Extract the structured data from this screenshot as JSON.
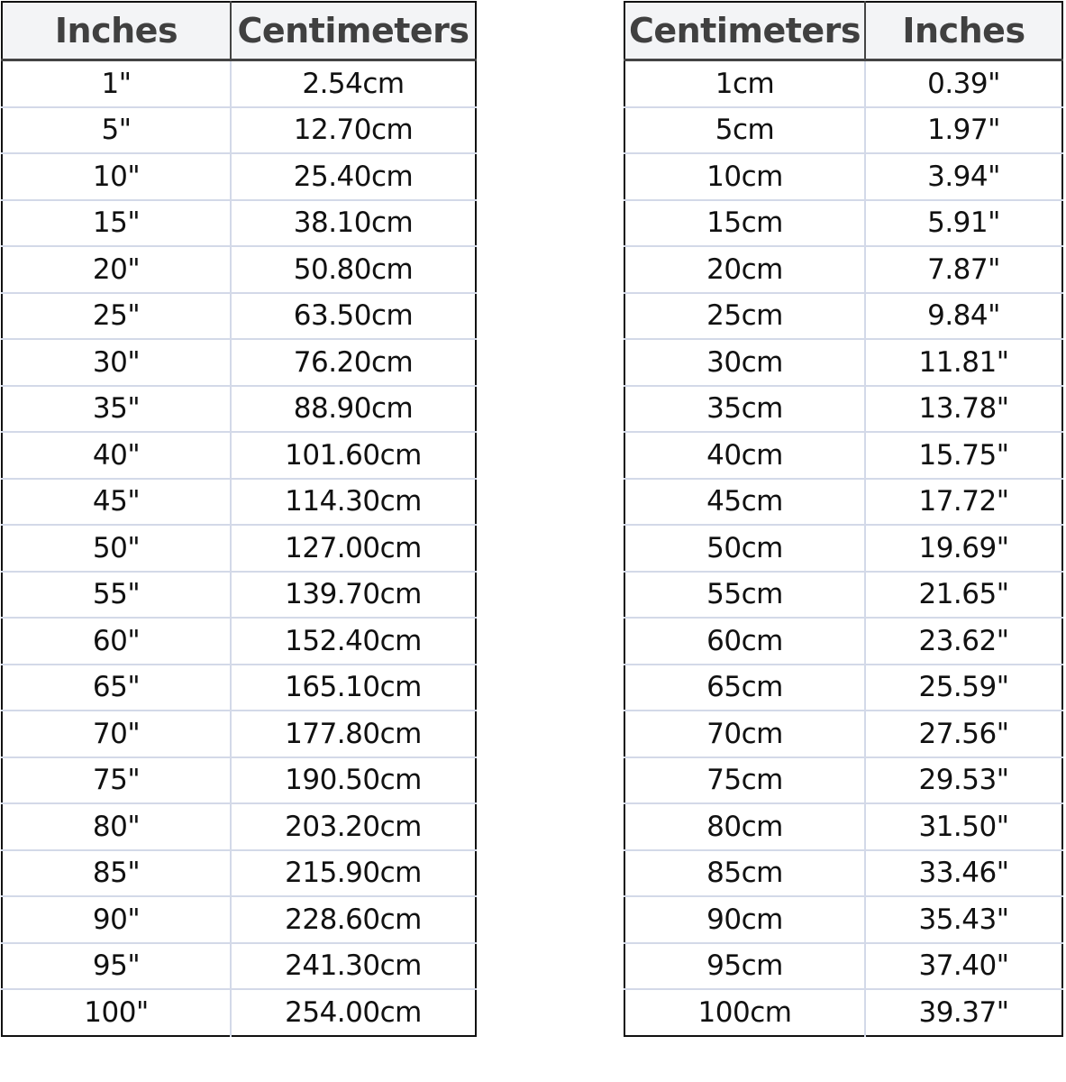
{
  "tables": [
    {
      "headers": [
        "Inches",
        "Centimeters"
      ],
      "rows": [
        [
          "1\"",
          "2.54cm"
        ],
        [
          "5\"",
          "12.70cm"
        ],
        [
          "10\"",
          "25.40cm"
        ],
        [
          "15\"",
          "38.10cm"
        ],
        [
          "20\"",
          "50.80cm"
        ],
        [
          "25\"",
          "63.50cm"
        ],
        [
          "30\"",
          "76.20cm"
        ],
        [
          "35\"",
          "88.90cm"
        ],
        [
          "40\"",
          "101.60cm"
        ],
        [
          "45\"",
          "114.30cm"
        ],
        [
          "50\"",
          "127.00cm"
        ],
        [
          "55\"",
          "139.70cm"
        ],
        [
          "60\"",
          "152.40cm"
        ],
        [
          "65\"",
          "165.10cm"
        ],
        [
          "70\"",
          "177.80cm"
        ],
        [
          "75\"",
          "190.50cm"
        ],
        [
          "80\"",
          "203.20cm"
        ],
        [
          "85\"",
          "215.90cm"
        ],
        [
          "90\"",
          "228.60cm"
        ],
        [
          "95\"",
          "241.30cm"
        ],
        [
          "100\"",
          "254.00cm"
        ]
      ]
    },
    {
      "headers": [
        "Centimeters",
        "Inches"
      ],
      "rows": [
        [
          "1cm",
          "0.39\""
        ],
        [
          "5cm",
          "1.97\""
        ],
        [
          "10cm",
          "3.94\""
        ],
        [
          "15cm",
          "5.91\""
        ],
        [
          "20cm",
          "7.87\""
        ],
        [
          "25cm",
          "9.84\""
        ],
        [
          "30cm",
          "11.81\""
        ],
        [
          "35cm",
          "13.78\""
        ],
        [
          "40cm",
          "15.75\""
        ],
        [
          "45cm",
          "17.72\""
        ],
        [
          "50cm",
          "19.69\""
        ],
        [
          "55cm",
          "21.65\""
        ],
        [
          "60cm",
          "23.62\""
        ],
        [
          "65cm",
          "25.59\""
        ],
        [
          "70cm",
          "27.56\""
        ],
        [
          "75cm",
          "29.53\""
        ],
        [
          "80cm",
          "31.50\""
        ],
        [
          "85cm",
          "33.46\""
        ],
        [
          "90cm",
          "35.43\""
        ],
        [
          "95cm",
          "37.40\""
        ],
        [
          "100cm",
          "39.37\""
        ]
      ]
    }
  ],
  "colors": {
    "header_bg": "#f3f4f6",
    "header_text": "#404040",
    "grid": "#d3d9e8",
    "border": "#111111"
  }
}
